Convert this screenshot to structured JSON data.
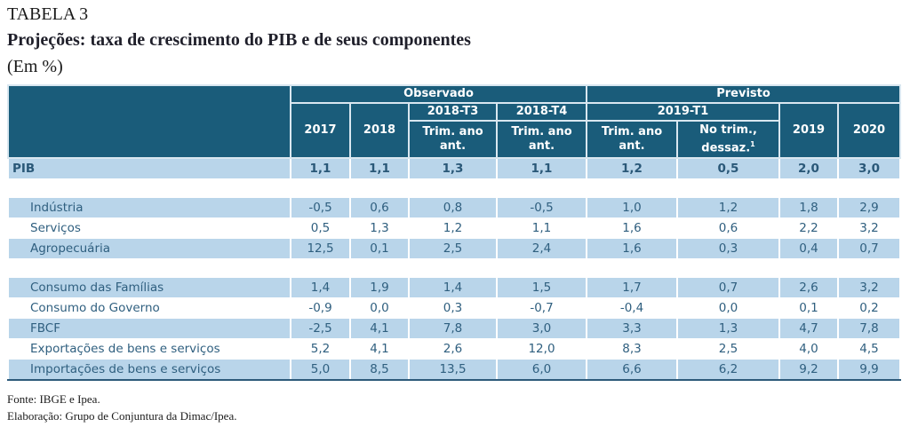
{
  "header": {
    "label": "TABELA 3",
    "title": "Projeções: taxa de crescimento do PIB e de seus componentes",
    "unit": "(Em %)"
  },
  "table": {
    "groups": {
      "observed": "Observado",
      "forecast": "Previsto"
    },
    "subgroups": {
      "t3": "2018-T3",
      "t4": "2018-T4",
      "t1": "2019-T1"
    },
    "columns": {
      "y2017": "2017",
      "y2018": "2018",
      "t3_yoy": "Trim. ano ant.",
      "t4_yoy": "Trim. ano ant.",
      "t1_yoy": "Trim. ano ant.",
      "t1_qoq": "No trim., dessaz.",
      "t1_qoq_note": "1",
      "y2019": "2019",
      "y2020": "2020"
    },
    "rows": [
      {
        "label": "PIB",
        "values": [
          "1,1",
          "1,1",
          "1,3",
          "1,1",
          "1,2",
          "0,5",
          "2,0",
          "3,0"
        ]
      },
      {
        "label": "Indústria",
        "values": [
          "-0,5",
          "0,6",
          "0,8",
          "-0,5",
          "1,0",
          "1,2",
          "1,8",
          "2,9"
        ]
      },
      {
        "label": "Serviços",
        "values": [
          "0,5",
          "1,3",
          "1,2",
          "1,1",
          "1,6",
          "0,6",
          "2,2",
          "3,2"
        ]
      },
      {
        "label": "Agropecuária",
        "values": [
          "12,5",
          "0,1",
          "2,5",
          "2,4",
          "1,6",
          "0,3",
          "0,4",
          "0,7"
        ]
      },
      {
        "label": "Consumo das Famílias",
        "values": [
          "1,4",
          "1,9",
          "1,4",
          "1,5",
          "1,7",
          "0,7",
          "2,6",
          "3,2"
        ]
      },
      {
        "label": "Consumo do Governo",
        "values": [
          "-0,9",
          "0,0",
          "0,3",
          "-0,7",
          "-0,4",
          "0,0",
          "0,1",
          "0,2"
        ]
      },
      {
        "label": "FBCF",
        "values": [
          "-2,5",
          "4,1",
          "7,8",
          "3,0",
          "3,3",
          "1,3",
          "4,7",
          "7,8"
        ]
      },
      {
        "label": "Exportações de bens e serviços",
        "values": [
          "5,2",
          "4,1",
          "2,6",
          "12,0",
          "8,3",
          "2,5",
          "4,0",
          "4,5"
        ]
      },
      {
        "label": "Importações de bens e serviços",
        "values": [
          "5,0",
          "8,5",
          "13,5",
          "6,0",
          "6,6",
          "6,2",
          "9,2",
          "9,9"
        ]
      }
    ]
  },
  "notes": {
    "source": "Fonte: IBGE e Ipea.",
    "elaboration": "Elaboração: Grupo de Conjuntura da Dimac/Ipea."
  }
}
